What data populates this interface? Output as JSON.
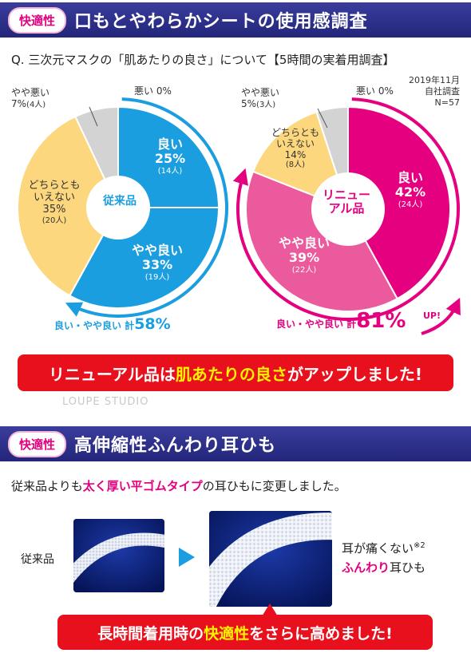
{
  "section1": {
    "tag": "快適性",
    "title": "口もとやわらかシートの使用感調査",
    "question": "Q. 三次元マスクの「肌あたりの良さ」について【5時間の実着用調査】",
    "survey_meta": [
      "2019年11月",
      "自社調査",
      "N=57"
    ]
  },
  "chart_data": [
    {
      "type": "pie",
      "title": "従来品",
      "categories": [
        "良い",
        "やや良い",
        "どちらともいえない",
        "やや悪い",
        "悪い"
      ],
      "values": [
        25,
        33,
        35,
        7,
        0
      ],
      "percent_labels": [
        "25%",
        "33%",
        "35%",
        "7%",
        "0%"
      ],
      "counts": [
        "(14人)",
        "(19人)",
        "(20人)",
        "(4人)",
        ""
      ],
      "colors": [
        "#1a9ee0",
        "#1a9ee0",
        "#fdd77d",
        "#d3d3d3",
        "#d3d3d3"
      ],
      "total_label": "良い・やや良い 計",
      "total_value": "58%"
    },
    {
      "type": "pie",
      "title": "リニューアル品",
      "categories": [
        "良い",
        "やや良い",
        "どちらともいえない",
        "やや悪い",
        "悪い"
      ],
      "values": [
        42,
        39,
        14,
        5,
        0
      ],
      "percent_labels": [
        "42%",
        "39%",
        "14%",
        "5%",
        "0%"
      ],
      "counts": [
        "(24人)",
        "(22人)",
        "(8人)",
        "(3人)",
        ""
      ],
      "colors": [
        "#e4007f",
        "#ea5a9c",
        "#fdd77d",
        "#d3d3d3",
        "#d3d3d3"
      ],
      "total_label": "良い・やや良い 計",
      "total_value": "81%",
      "up_label": "UP!"
    }
  ],
  "old_chart": {
    "center": "従来品",
    "good": {
      "label": "良い",
      "pct": "25%",
      "count": "(14人)"
    },
    "fair_good": {
      "label": "やや良い",
      "pct": "33%",
      "count": "(19人)"
    },
    "neutral": {
      "line1": "どちらとも",
      "line2": "いえない",
      "pct": "35%",
      "count": "(20人)"
    },
    "fair_bad": {
      "label": "やや悪い",
      "pct": "7%",
      "count": "(4人)"
    },
    "bad": {
      "label": "悪い 0%"
    },
    "total_label": "良い・やや良い 計",
    "total_value": "58%"
  },
  "new_chart": {
    "center_line1": "リニュー",
    "center_line2": "アル品",
    "good": {
      "label": "良い",
      "pct": "42%",
      "count": "(24人)"
    },
    "fair_good": {
      "label": "やや良い",
      "pct": "39%",
      "count": "(22人)"
    },
    "neutral": {
      "line1": "どちらとも",
      "line2": "いえない",
      "pct": "14%",
      "count": "(8人)"
    },
    "fair_bad": {
      "label": "やや悪い",
      "pct": "5%",
      "count": "(3人)"
    },
    "bad": {
      "label": "悪い 0%"
    },
    "total_label": "良い・やや良い 計",
    "total_value": "81%",
    "up": "UP!"
  },
  "callout1": {
    "pre": "リニューアル品は",
    "hl": "肌あたりの良さ",
    "post": "がアップしました!"
  },
  "watermark": "LOUPE STUDIO",
  "section2": {
    "tag": "快適性",
    "title": "高伸縮性ふんわり耳ひも",
    "desc_pre": "従来品よりも",
    "desc_hl": "太く厚い平ゴムタイプ",
    "desc_post": "の耳ひもに変更しました。",
    "old_label": "従来品",
    "benefit_line1": "耳が痛くない",
    "benefit_note": "※2",
    "benefit_hl": "ふんわり",
    "benefit_post": "耳ひも"
  },
  "callout2": {
    "pre": "長時間着用時の",
    "hl": "快適性",
    "post": "をさらに高めました!"
  }
}
